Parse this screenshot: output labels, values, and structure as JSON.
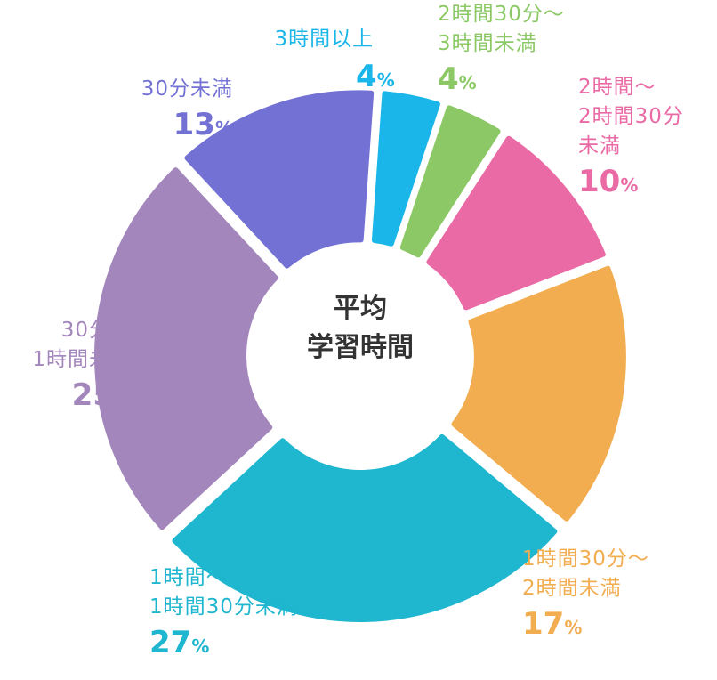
{
  "chart_data": {
    "type": "pie",
    "title": "平均\n学習時間",
    "title_lines": [
      "平均",
      "学習時間"
    ],
    "slices": [
      {
        "label": "3時間以上",
        "label_lines": [
          "3時間以上"
        ],
        "value": 4,
        "color": "#1ab6e9"
      },
      {
        "label": "2時間30分〜3時間未満",
        "label_lines": [
          "2時間30分〜",
          "3時間未満"
        ],
        "value": 4,
        "color": "#8cc966"
      },
      {
        "label": "2時間〜2時間30分未満",
        "label_lines": [
          "2時間〜",
          "2時間30分",
          "未満"
        ],
        "value": 10,
        "color": "#e96aa5"
      },
      {
        "label": "1時間30分〜2時間未満",
        "label_lines": [
          "1時間30分〜",
          "2時間未満"
        ],
        "value": 17,
        "color": "#f3ad51"
      },
      {
        "label": "1時間〜1時間30分未満",
        "label_lines": [
          "1時間〜",
          "1時間30分未満"
        ],
        "value": 27,
        "color": "#1fb6cf"
      },
      {
        "label": "30分〜1時間未満",
        "label_lines": [
          "30分〜",
          "1時間未満"
        ],
        "value": 25,
        "color": "#a386bb"
      },
      {
        "label": "30分未満",
        "label_lines": [
          "30分未満"
        ],
        "value": 13,
        "color": "#7372d4"
      }
    ],
    "unit": "%"
  }
}
